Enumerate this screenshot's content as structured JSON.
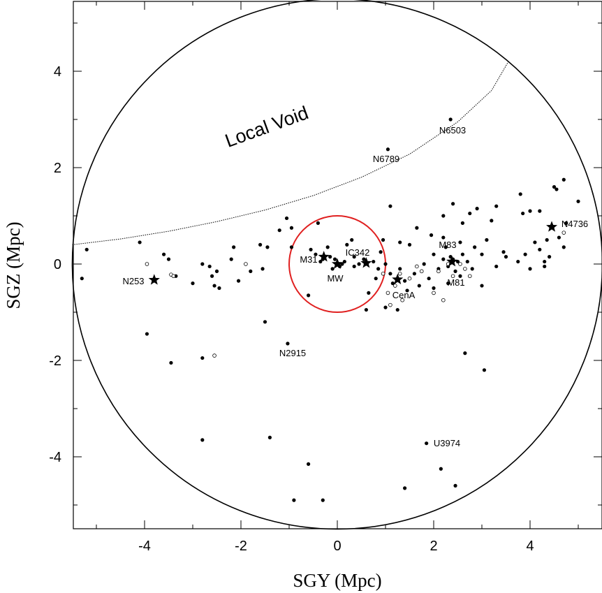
{
  "chart_data": {
    "type": "scatter",
    "title": "",
    "xlabel": "SGY (Mpc)",
    "ylabel": "SGZ (Mpc)",
    "xlim": [
      -5.5,
      5.5
    ],
    "ylim": [
      -5.5,
      5.5
    ],
    "xticks": [
      -4,
      -2,
      0,
      2,
      4
    ],
    "yticks": [
      -4,
      -2,
      0,
      2,
      4
    ],
    "xtick_labels": [
      "-4",
      "-2",
      "0",
      "2",
      "4"
    ],
    "ytick_labels": [
      "-4",
      "-2",
      "0",
      "2",
      "4"
    ],
    "grid": false,
    "boundary_circle_radius": 5.5,
    "local_group_circle": {
      "radius": 1.0,
      "color": "#e02020"
    },
    "void_boundary": [
      [
        -5.5,
        0.4
      ],
      [
        -4.5,
        0.52
      ],
      [
        -3.5,
        0.68
      ],
      [
        -2.5,
        0.88
      ],
      [
        -1.5,
        1.12
      ],
      [
        -0.5,
        1.42
      ],
      [
        0.5,
        1.8
      ],
      [
        1.5,
        2.28
      ],
      [
        2.5,
        2.95
      ],
      [
        3.2,
        3.6
      ],
      [
        3.55,
        4.2
      ]
    ],
    "void_label": "Local Void",
    "series": [
      {
        "marker": "filled-dot",
        "points": [
          [
            -5.2,
            0.3
          ],
          [
            -5.3,
            -0.3
          ],
          [
            -4.1,
            0.45
          ],
          [
            -3.6,
            0.2
          ],
          [
            -3.5,
            0.1
          ],
          [
            -3.35,
            -0.25
          ],
          [
            -2.8,
            0.0
          ],
          [
            -2.6,
            -0.25
          ],
          [
            -2.55,
            -0.45
          ],
          [
            -2.5,
            -0.15
          ],
          [
            -2.45,
            -0.5
          ],
          [
            -2.2,
            0.1
          ],
          [
            -2.15,
            0.35
          ],
          [
            -2.05,
            -0.35
          ],
          [
            -1.8,
            -0.15
          ],
          [
            -1.6,
            0.4
          ],
          [
            -1.55,
            -0.1
          ],
          [
            -1.45,
            0.35
          ],
          [
            -1.05,
            0.95
          ],
          [
            -0.95,
            0.75
          ],
          [
            -0.55,
            0.3
          ],
          [
            -0.45,
            0.2
          ],
          [
            -0.4,
            0.85
          ],
          [
            -0.6,
            -0.65
          ],
          [
            -0.3,
            0.1
          ],
          [
            -0.2,
            0.35
          ],
          [
            -0.15,
            0.15
          ],
          [
            -0.05,
            0.1
          ],
          [
            0.05,
            -0.05
          ],
          [
            0.1,
            0.0
          ],
          [
            -0.1,
            -0.1
          ],
          [
            0.15,
            0.05
          ],
          [
            0.35,
            0.15
          ],
          [
            0.45,
            0.0
          ],
          [
            0.35,
            -0.05
          ],
          [
            0.55,
            0.1
          ],
          [
            0.75,
            0.05
          ],
          [
            0.85,
            -0.1
          ],
          [
            0.9,
            0.25
          ],
          [
            0.95,
            0.5
          ],
          [
            1.0,
            0.0
          ],
          [
            1.1,
            -0.2
          ],
          [
            1.15,
            -0.4
          ],
          [
            1.3,
            -0.1
          ],
          [
            1.4,
            -0.35
          ],
          [
            1.45,
            -0.55
          ],
          [
            1.6,
            -0.2
          ],
          [
            1.7,
            -0.45
          ],
          [
            1.8,
            0.0
          ],
          [
            1.9,
            -0.3
          ],
          [
            2.0,
            0.2
          ],
          [
            2.1,
            -0.1
          ],
          [
            2.2,
            0.1
          ],
          [
            2.25,
            0.35
          ],
          [
            2.3,
            -0.05
          ],
          [
            2.35,
            0.15
          ],
          [
            2.4,
            0.1
          ],
          [
            2.45,
            -0.15
          ],
          [
            2.5,
            0.05
          ],
          [
            2.55,
            -0.25
          ],
          [
            2.6,
            0.2
          ],
          [
            2.7,
            0.05
          ],
          [
            2.8,
            -0.1
          ],
          [
            2.85,
            0.35
          ],
          [
            3.0,
            0.2
          ],
          [
            3.1,
            0.5
          ],
          [
            3.3,
            -0.05
          ],
          [
            3.5,
            0.15
          ],
          [
            3.75,
            0.05
          ],
          [
            3.9,
            0.2
          ],
          [
            4.0,
            -0.1
          ],
          [
            4.1,
            0.45
          ],
          [
            4.2,
            0.3
          ],
          [
            4.3,
            -0.05
          ],
          [
            4.35,
            0.5
          ],
          [
            4.4,
            0.15
          ],
          [
            4.6,
            0.55
          ],
          [
            4.7,
            0.35
          ],
          [
            1.1,
            1.2
          ],
          [
            2.2,
            1.0
          ],
          [
            2.4,
            1.25
          ],
          [
            2.6,
            0.85
          ],
          [
            2.75,
            1.05
          ],
          [
            2.9,
            1.15
          ],
          [
            3.2,
            0.9
          ],
          [
            3.3,
            1.2
          ],
          [
            3.8,
            1.45
          ],
          [
            3.85,
            1.05
          ],
          [
            4.0,
            1.1
          ],
          [
            4.2,
            1.1
          ],
          [
            4.5,
            1.6
          ],
          [
            4.55,
            1.55
          ],
          [
            4.7,
            1.75
          ],
          [
            5.0,
            1.3
          ],
          [
            1.05,
            2.38
          ],
          [
            2.35,
            3.0
          ],
          [
            -3.95,
            -1.45
          ],
          [
            -3.45,
            -2.05
          ],
          [
            -2.8,
            -1.95
          ],
          [
            -1.5,
            -1.2
          ],
          [
            -1.03,
            -1.65
          ],
          [
            -2.8,
            -3.65
          ],
          [
            -1.4,
            -3.6
          ],
          [
            -0.6,
            -4.15
          ],
          [
            -0.9,
            -4.9
          ],
          [
            -0.3,
            -4.9
          ],
          [
            1.85,
            -3.72
          ],
          [
            2.15,
            -4.25
          ],
          [
            2.45,
            -4.6
          ],
          [
            1.4,
            -4.65
          ],
          [
            2.65,
            -1.85
          ],
          [
            3.05,
            -2.2
          ],
          [
            0.6,
            -0.95
          ],
          [
            1.0,
            -0.9
          ],
          [
            1.25,
            -0.95
          ],
          [
            1.3,
            0.45
          ],
          [
            1.65,
            0.75
          ],
          [
            2.2,
            0.55
          ],
          [
            -1.2,
            0.7
          ],
          [
            -0.95,
            0.35
          ],
          [
            0.65,
            -0.6
          ],
          [
            0.2,
            0.4
          ],
          [
            -0.35,
            0.05
          ],
          [
            0.8,
            -0.3
          ],
          [
            1.5,
            0.4
          ],
          [
            2.0,
            -0.5
          ],
          [
            2.3,
            -0.4
          ],
          [
            2.55,
            0.45
          ],
          [
            3.45,
            0.25
          ],
          [
            4.3,
            0.05
          ],
          [
            4.75,
            0.85
          ],
          [
            0.3,
            0.5
          ],
          [
            -2.65,
            -0.05
          ],
          [
            -3.0,
            -0.4
          ],
          [
            1.95,
            0.6
          ],
          [
            3.0,
            -0.45
          ]
        ]
      },
      {
        "marker": "open-circle",
        "points": [
          [
            -3.95,
            0.0
          ],
          [
            -3.45,
            -0.22
          ],
          [
            -3.4,
            -0.25
          ],
          [
            -1.9,
            0.0
          ],
          [
            -2.55,
            -1.9
          ],
          [
            0.95,
            -0.2
          ],
          [
            1.05,
            -0.6
          ],
          [
            1.1,
            -0.85
          ],
          [
            1.3,
            -0.2
          ],
          [
            1.35,
            -0.75
          ],
          [
            1.5,
            -0.3
          ],
          [
            1.65,
            -0.05
          ],
          [
            1.75,
            -0.15
          ],
          [
            2.0,
            -0.6
          ],
          [
            2.1,
            -0.15
          ],
          [
            2.2,
            -0.75
          ],
          [
            2.3,
            0.0
          ],
          [
            2.4,
            -0.25
          ],
          [
            2.55,
            0.0
          ],
          [
            2.65,
            -0.1
          ],
          [
            2.75,
            -0.25
          ],
          [
            4.7,
            0.65
          ],
          [
            1.2,
            -0.45
          ]
        ]
      },
      {
        "marker": "star",
        "points": [
          [
            -3.8,
            -0.33
          ],
          [
            -0.28,
            0.15
          ],
          [
            0.6,
            0.02
          ],
          [
            1.25,
            -0.32
          ],
          [
            2.38,
            0.05
          ],
          [
            4.45,
            0.77
          ],
          [
            0.0,
            0.0
          ]
        ]
      }
    ],
    "annotations": [
      {
        "text": "Local Void"
      },
      {
        "text": "N6503"
      },
      {
        "text": "N6789"
      },
      {
        "text": "N4736"
      },
      {
        "text": "M31"
      },
      {
        "text": "IC342"
      },
      {
        "text": "M83"
      },
      {
        "text": "N253"
      },
      {
        "text": "MW"
      },
      {
        "text": "M81"
      },
      {
        "text": "CenA"
      },
      {
        "text": "N2915"
      },
      {
        "text": "U3974"
      }
    ]
  }
}
